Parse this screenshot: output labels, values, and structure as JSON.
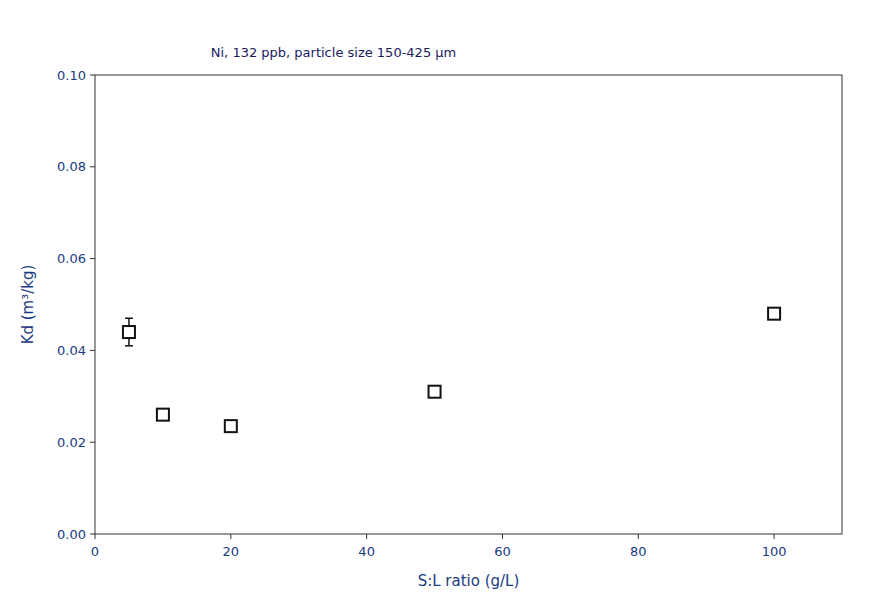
{
  "chart_data": {
    "type": "scatter",
    "annotation": "Ni, 132 ppb, particle size 150-425 μm",
    "x_label": "S:L ratio (g/L)",
    "y_label": "Kd (m³/kg)",
    "x": [
      5,
      10,
      20,
      50,
      100
    ],
    "values": [
      0.044,
      0.026,
      0.0235,
      0.031,
      0.048
    ],
    "errors": [
      0.003,
      0.0,
      0.001,
      0.001,
      0.0
    ],
    "color": "#111111",
    "marker": "square",
    "xlim": [
      0,
      110
    ],
    "ylim": [
      0.0,
      0.1
    ],
    "xticks": [
      0,
      20,
      40,
      60,
      80,
      100
    ],
    "yticks": [
      {
        "value": 0.0,
        "label": "0.00"
      },
      {
        "value": 0.02,
        "label": "0.02"
      },
      {
        "value": 0.04,
        "label": "0.04"
      },
      {
        "value": 0.06,
        "label": "0.06"
      },
      {
        "value": 0.08,
        "label": "0.08"
      },
      {
        "value": 0.1,
        "label": "0.10"
      }
    ],
    "grid": false
  }
}
